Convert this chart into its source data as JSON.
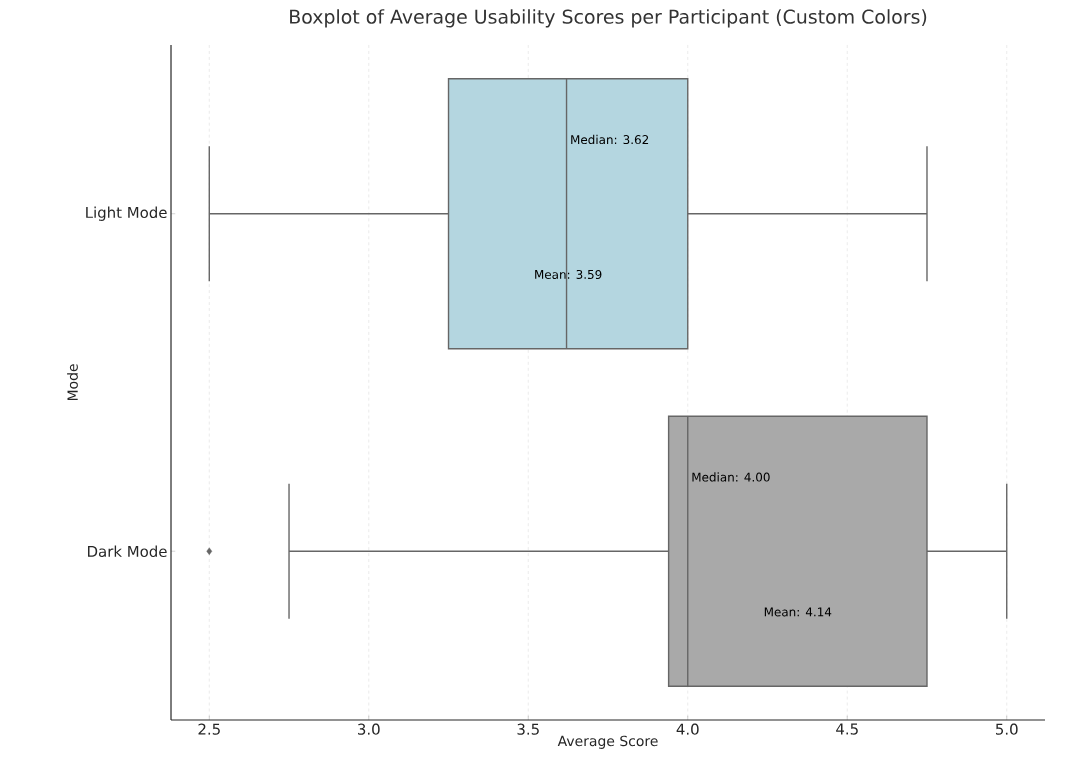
{
  "chart_data": {
    "type": "box",
    "title": "Boxplot of Average Usability Scores per Participant (Custom Colors)",
    "xlabel": "Average Score",
    "ylabel": "Mode",
    "orientation": "horizontal",
    "categories": [
      "Light Mode",
      "Dark Mode"
    ],
    "colors": [
      "#b4d6e0",
      "#a9a9a9"
    ],
    "boxes": [
      {
        "low": 2.5,
        "q1": 3.25,
        "median": 3.62,
        "q3": 4.0,
        "high": 4.75
      },
      {
        "low": 2.75,
        "q1": 3.94,
        "median": 4.0,
        "q3": 4.75,
        "high": 5.0,
        "outliers": [
          2.5
        ]
      }
    ],
    "xlim": [
      2.38,
      5.12
    ],
    "xticks": [
      {
        "value": 2.5,
        "label": "2.5"
      },
      {
        "value": 3.0,
        "label": "3.0"
      },
      {
        "value": 3.5,
        "label": "3.5"
      },
      {
        "value": 4.0,
        "label": "4.0"
      },
      {
        "value": 4.5,
        "label": "4.5"
      },
      {
        "value": 5.0,
        "label": "5.0"
      }
    ],
    "grid": "x",
    "marker": "diamond",
    "annotations": [
      "Median: 3.62",
      "Mean: 3.59",
      "Median: 4.00",
      "Mean: 4.14"
    ]
  }
}
